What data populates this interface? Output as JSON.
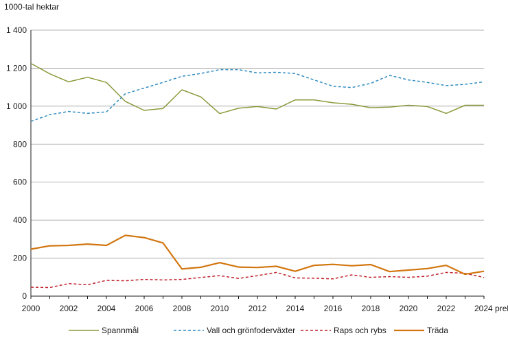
{
  "chart_data": {
    "type": "line",
    "title": "",
    "ylabel": "1000-tal hektar",
    "xlabel": "",
    "ylim": [
      0,
      1400
    ],
    "yticks": [
      0,
      200,
      400,
      600,
      800,
      1000,
      1200,
      1400
    ],
    "ytick_labels": [
      "0",
      "200",
      "400",
      "600",
      "800",
      "1 000",
      "1 200",
      "1 400"
    ],
    "x": [
      2000,
      2001,
      2002,
      2003,
      2004,
      2005,
      2006,
      2007,
      2008,
      2009,
      2010,
      2011,
      2012,
      2013,
      2014,
      2015,
      2016,
      2017,
      2018,
      2019,
      2020,
      2021,
      2022,
      2023,
      2024
    ],
    "xticks": [
      2000,
      2002,
      2004,
      2006,
      2008,
      2010,
      2012,
      2014,
      2016,
      2018,
      2020,
      2022,
      2024
    ],
    "xtick_labels": [
      "2000",
      "2002",
      "2004",
      "2006",
      "2008",
      "2010",
      "2012",
      "2014",
      "2016",
      "2018",
      "2020",
      "2022",
      "2024 prel."
    ],
    "grid": true,
    "legend_position": "bottom",
    "series": [
      {
        "name": "Spannmål",
        "color": "#8a9a3b",
        "dash": "solid",
        "values": [
          1225,
          1170,
          1128,
          1152,
          1125,
          1025,
          978,
          988,
          1086,
          1049,
          961,
          989,
          998,
          985,
          1033,
          1033,
          1018,
          1010,
          992,
          995,
          1005,
          998,
          962,
          1005,
          1005
        ]
      },
      {
        "name": "Vall och grönfoderväxter",
        "color": "#2e8bc0",
        "dash": "dashed",
        "values": [
          920,
          955,
          972,
          962,
          970,
          1065,
          1095,
          1125,
          1157,
          1172,
          1192,
          1192,
          1175,
          1178,
          1172,
          1138,
          1105,
          1098,
          1120,
          1162,
          1138,
          1125,
          1108,
          1115,
          1128
        ]
      },
      {
        "name": "Raps och rybs",
        "color": "#c0202a",
        "dash": "dashed",
        "values": [
          47,
          45,
          66,
          60,
          83,
          81,
          88,
          85,
          88,
          98,
          108,
          93,
          108,
          125,
          96,
          94,
          91,
          112,
          99,
          103,
          99,
          105,
          125,
          120,
          98
        ]
      },
      {
        "name": "Träda",
        "color": "#d2760f",
        "dash": "solid",
        "values": [
          247,
          265,
          267,
          274,
          267,
          320,
          308,
          280,
          143,
          152,
          176,
          153,
          151,
          157,
          131,
          162,
          167,
          160,
          166,
          129,
          137,
          145,
          162,
          115,
          131
        ]
      }
    ]
  }
}
